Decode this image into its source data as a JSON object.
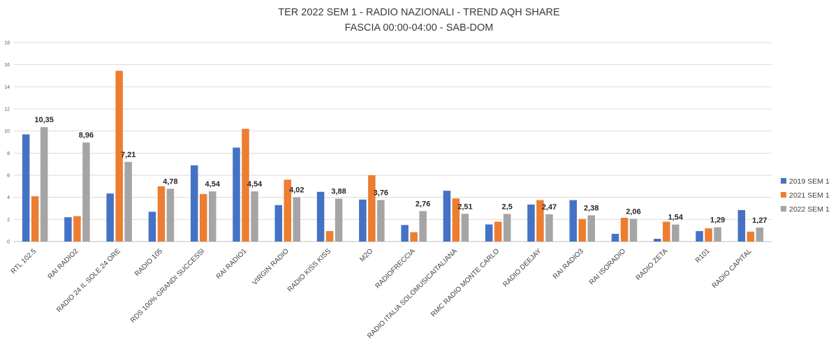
{
  "chart_data": {
    "type": "bar",
    "title": "TER 2022 SEM 1 - RADIO NAZIONALI - TREND AQH SHARE",
    "subtitle": "FASCIA 00:00-04:00 - SAB-DOM",
    "xlabel": "",
    "ylabel": "",
    "ylim": [
      0,
      18
    ],
    "yticks": [
      "0",
      "2",
      "4",
      "6",
      "8",
      "10",
      "12",
      "14",
      "16",
      "18"
    ],
    "grid": true,
    "legend_position": "right",
    "categories": [
      "RTL 102.5",
      "RAI RADIO2",
      "RADIO 24 IL SOLE 24 ORE",
      "RADIO 105",
      "RDS 100% GRANDI SUCCESSI",
      "RAI RADIO1",
      "VIRGIN RADIO",
      "RADIO KISS KISS",
      "M2O",
      "RADIOFRECCIA",
      "RADIO ITALIA SOLOMUSICAITALIANA",
      "RMC RADIO MONTE CARLO",
      "RADIO DEEJAY",
      "RAI RADIO3",
      "RAI ISORADIO",
      "RADIO ZETA",
      "R101",
      "RADIO CAPITAL"
    ],
    "series": [
      {
        "name": "2019 SEM 1",
        "color": "#4472c4",
        "values": [
          9.7,
          2.2,
          4.35,
          2.7,
          6.9,
          8.5,
          3.3,
          4.5,
          3.8,
          1.5,
          4.6,
          1.55,
          3.35,
          3.75,
          0.7,
          0.25,
          0.95,
          2.85
        ]
      },
      {
        "name": "2021 SEM 1",
        "color": "#ed7d31",
        "values": [
          4.1,
          2.3,
          15.45,
          5.0,
          4.3,
          10.2,
          5.6,
          0.95,
          6.0,
          0.85,
          3.9,
          1.8,
          3.75,
          2.05,
          2.15,
          1.8,
          1.2,
          0.9
        ]
      },
      {
        "name": "2022 SEM 1",
        "color": "#a5a5a5",
        "values": [
          10.35,
          8.96,
          7.21,
          4.78,
          4.54,
          4.54,
          4.02,
          3.88,
          3.76,
          2.76,
          2.51,
          2.5,
          2.47,
          2.38,
          2.06,
          1.54,
          1.29,
          1.27
        ],
        "labels": [
          "10,35",
          "8,96",
          "7,21",
          "4,78",
          "4,54",
          "4,54",
          "4,02",
          "3,88",
          "3,76",
          "2,76",
          "2,51",
          "2,5",
          "2,47",
          "2,38",
          "2,06",
          "1,54",
          "1,29",
          "1,27"
        ]
      }
    ]
  }
}
